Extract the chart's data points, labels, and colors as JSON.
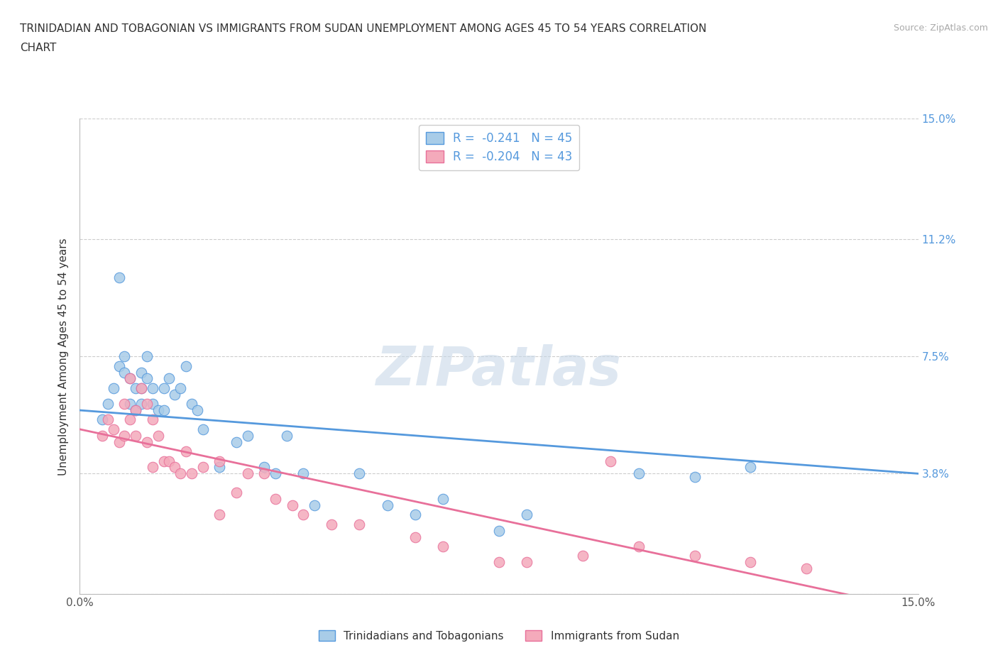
{
  "title_line1": "TRINIDADIAN AND TOBAGONIAN VS IMMIGRANTS FROM SUDAN UNEMPLOYMENT AMONG AGES 45 TO 54 YEARS CORRELATION",
  "title_line2": "CHART",
  "source_text": "Source: ZipAtlas.com",
  "ylabel": "Unemployment Among Ages 45 to 54 years",
  "xlim": [
    0.0,
    0.15
  ],
  "ylim": [
    0.0,
    0.15
  ],
  "ytick_values": [
    0.0,
    0.038,
    0.075,
    0.112,
    0.15
  ],
  "ytick_right_labels": [
    "",
    "3.8%",
    "7.5%",
    "11.2%",
    "15.0%"
  ],
  "watermark_text": "ZIPatlas",
  "legend_entry1": "R =  -0.241   N = 45",
  "legend_entry2": "R =  -0.204   N = 43",
  "legend_label1": "Trinidadians and Tobagonians",
  "legend_label2": "Immigrants from Sudan",
  "color_blue": "#A8CCE8",
  "color_pink": "#F4AABB",
  "line_color_blue": "#5599DD",
  "line_color_pink": "#E8709A",
  "blue_scatter_x": [
    0.004,
    0.005,
    0.006,
    0.007,
    0.007,
    0.008,
    0.008,
    0.009,
    0.009,
    0.01,
    0.01,
    0.011,
    0.011,
    0.011,
    0.012,
    0.012,
    0.013,
    0.013,
    0.014,
    0.015,
    0.015,
    0.016,
    0.017,
    0.018,
    0.019,
    0.02,
    0.021,
    0.022,
    0.025,
    0.028,
    0.03,
    0.033,
    0.035,
    0.037,
    0.04,
    0.042,
    0.05,
    0.055,
    0.06,
    0.065,
    0.075,
    0.08,
    0.1,
    0.11,
    0.12
  ],
  "blue_scatter_y": [
    0.055,
    0.06,
    0.065,
    0.1,
    0.072,
    0.07,
    0.075,
    0.068,
    0.06,
    0.065,
    0.058,
    0.07,
    0.065,
    0.06,
    0.075,
    0.068,
    0.065,
    0.06,
    0.058,
    0.065,
    0.058,
    0.068,
    0.063,
    0.065,
    0.072,
    0.06,
    0.058,
    0.052,
    0.04,
    0.048,
    0.05,
    0.04,
    0.038,
    0.05,
    0.038,
    0.028,
    0.038,
    0.028,
    0.025,
    0.03,
    0.02,
    0.025,
    0.038,
    0.037,
    0.04
  ],
  "pink_scatter_x": [
    0.004,
    0.005,
    0.006,
    0.007,
    0.008,
    0.008,
    0.009,
    0.009,
    0.01,
    0.01,
    0.011,
    0.012,
    0.012,
    0.013,
    0.013,
    0.014,
    0.015,
    0.016,
    0.017,
    0.018,
    0.019,
    0.02,
    0.022,
    0.025,
    0.025,
    0.028,
    0.03,
    0.033,
    0.035,
    0.038,
    0.04,
    0.045,
    0.05,
    0.06,
    0.065,
    0.075,
    0.08,
    0.09,
    0.095,
    0.1,
    0.11,
    0.12,
    0.13
  ],
  "pink_scatter_y": [
    0.05,
    0.055,
    0.052,
    0.048,
    0.06,
    0.05,
    0.068,
    0.055,
    0.058,
    0.05,
    0.065,
    0.048,
    0.06,
    0.055,
    0.04,
    0.05,
    0.042,
    0.042,
    0.04,
    0.038,
    0.045,
    0.038,
    0.04,
    0.042,
    0.025,
    0.032,
    0.038,
    0.038,
    0.03,
    0.028,
    0.025,
    0.022,
    0.022,
    0.018,
    0.015,
    0.01,
    0.01,
    0.012,
    0.042,
    0.015,
    0.012,
    0.01,
    0.008
  ]
}
